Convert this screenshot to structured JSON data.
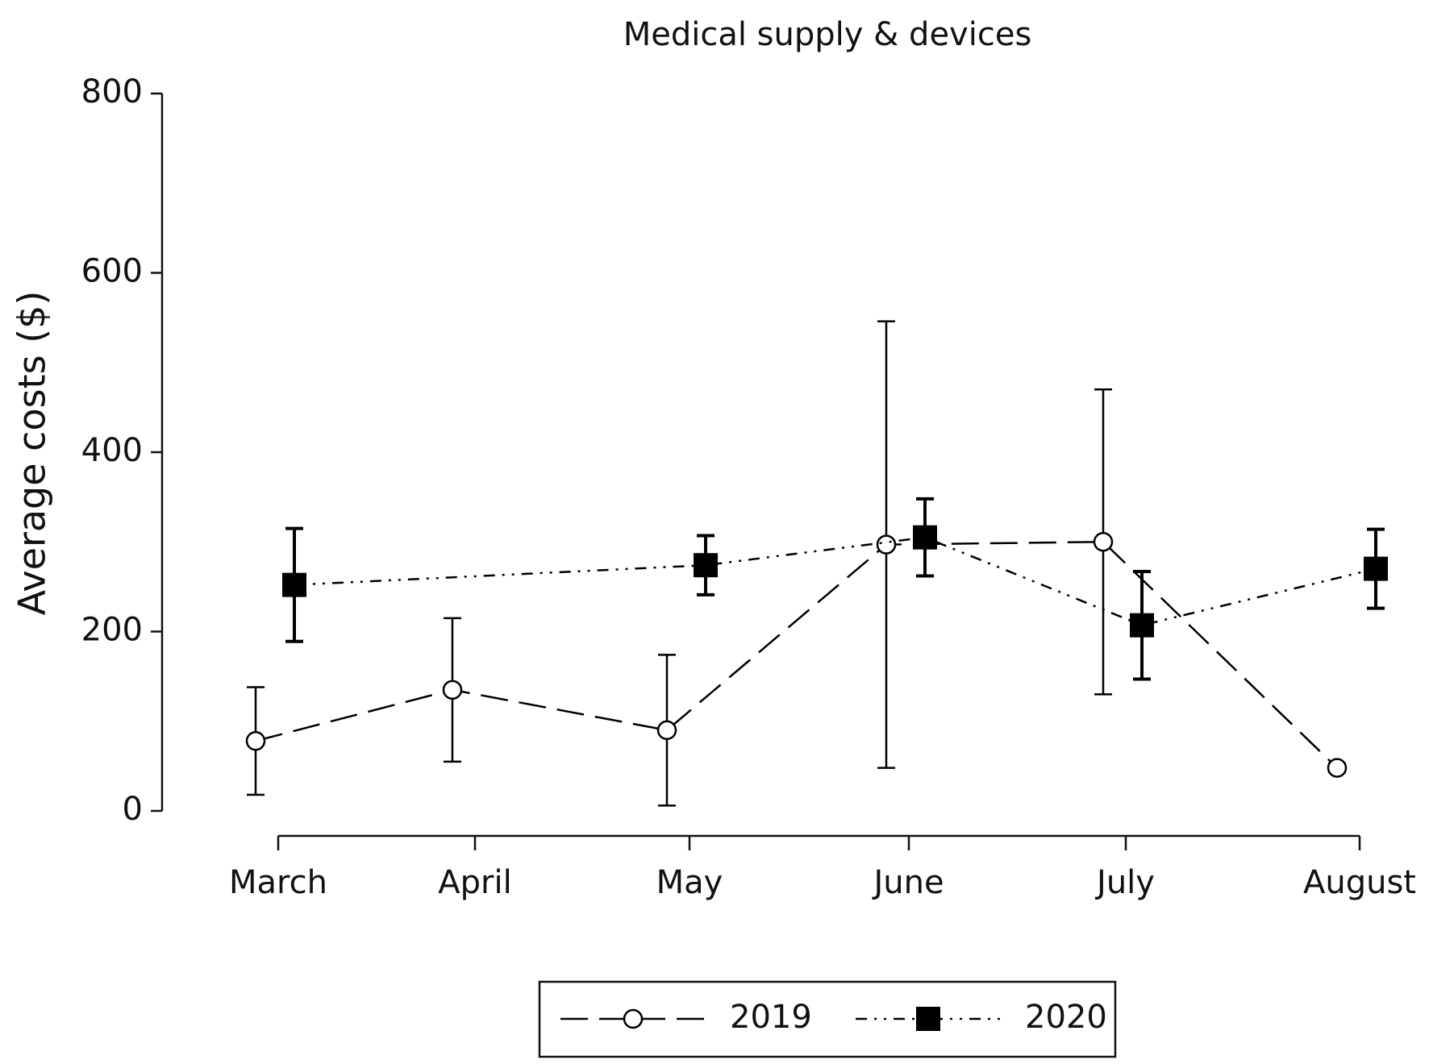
{
  "chart_data": {
    "type": "line",
    "title": "Medical supply & devices",
    "ylabel": "Average costs  ($)",
    "categories": [
      "March",
      "April",
      "May",
      "June",
      "July",
      "August"
    ],
    "ylim": [
      0,
      800
    ],
    "yticks": [
      0,
      200,
      400,
      600,
      800
    ],
    "series": [
      {
        "name": "2019",
        "color": "#000000",
        "marker": "open-circle",
        "line_style": "dashed",
        "x": [
          "March",
          "April",
          "May",
          "June",
          "July",
          "August"
        ],
        "values": [
          78,
          135,
          90,
          297,
          300,
          48
        ],
        "errors": [
          60,
          80,
          84,
          249,
          170,
          5
        ]
      },
      {
        "name": "2020",
        "color": "#000000",
        "marker": "filled-square",
        "line_style": "dash-dot-dot",
        "x": [
          "March",
          "May",
          "June",
          "July",
          "August"
        ],
        "values": [
          252,
          274,
          305,
          207,
          270
        ],
        "errors": [
          63,
          33,
          43,
          60,
          44
        ]
      }
    ]
  }
}
